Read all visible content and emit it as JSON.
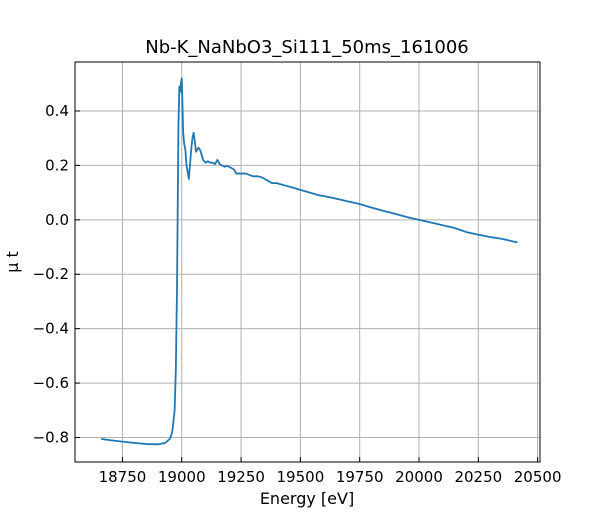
{
  "chart_data": {
    "type": "line",
    "title": "Nb-K_NaNbO3_Si111_50ms_161006",
    "xlabel": "Energy [eV]",
    "ylabel": "μ t",
    "xlim": [
      18550,
      20510
    ],
    "ylim": [
      -0.89,
      0.58
    ],
    "xticks": [
      18750,
      19000,
      19250,
      19500,
      19750,
      20000,
      20250,
      20500
    ],
    "xtick_labels": [
      "18750",
      "19000",
      "19250",
      "19500",
      "19750",
      "20000",
      "20250",
      "20500"
    ],
    "yticks": [
      -0.8,
      -0.6,
      -0.4,
      -0.2,
      0.0,
      0.2,
      0.4
    ],
    "ytick_labels": [
      "−0.8",
      "−0.6",
      "−0.4",
      "−0.2",
      "0.0",
      "0.2",
      "0.4"
    ],
    "grid": true,
    "ticks_direction": "in",
    "series": [
      {
        "color": "#1f77b4",
        "x": [
          18660,
          18700,
          18750,
          18800,
          18850,
          18900,
          18930,
          18950,
          18960,
          18970,
          18975,
          18980,
          18983,
          18986,
          18990,
          18993,
          18996,
          19000,
          19003,
          19006,
          19010,
          19015,
          19020,
          19030,
          19040,
          19045,
          19050,
          19055,
          19060,
          19070,
          19075,
          19080,
          19090,
          19100,
          19110,
          19120,
          19130,
          19140,
          19150,
          19160,
          19170,
          19180,
          19190,
          19200,
          19220,
          19230,
          19240,
          19250,
          19270,
          19300,
          19320,
          19340,
          19360,
          19380,
          19400,
          19420,
          19440,
          19460,
          19480,
          19500,
          19520,
          19540,
          19560,
          19580,
          19600,
          19650,
          19700,
          19750,
          19800,
          19850,
          19900,
          19950,
          20000,
          20050,
          20100,
          20150,
          20200,
          20250,
          20300,
          20350,
          20400,
          20415
        ],
        "y": [
          -0.805,
          -0.81,
          -0.815,
          -0.82,
          -0.824,
          -0.825,
          -0.82,
          -0.805,
          -0.78,
          -0.7,
          -0.55,
          -0.25,
          0.05,
          0.35,
          0.49,
          0.47,
          0.5,
          0.52,
          0.42,
          0.32,
          0.28,
          0.26,
          0.2,
          0.15,
          0.26,
          0.3,
          0.32,
          0.29,
          0.25,
          0.265,
          0.26,
          0.25,
          0.22,
          0.21,
          0.215,
          0.21,
          0.21,
          0.205,
          0.22,
          0.205,
          0.2,
          0.195,
          0.198,
          0.195,
          0.185,
          0.17,
          0.17,
          0.17,
          0.17,
          0.16,
          0.16,
          0.155,
          0.145,
          0.135,
          0.135,
          0.13,
          0.125,
          0.12,
          0.115,
          0.11,
          0.105,
          0.1,
          0.095,
          0.09,
          0.087,
          0.078,
          0.068,
          0.058,
          0.045,
          0.033,
          0.022,
          0.01,
          0.0,
          -0.01,
          -0.02,
          -0.03,
          -0.045,
          -0.055,
          -0.063,
          -0.07,
          -0.08,
          -0.083
        ]
      }
    ]
  }
}
